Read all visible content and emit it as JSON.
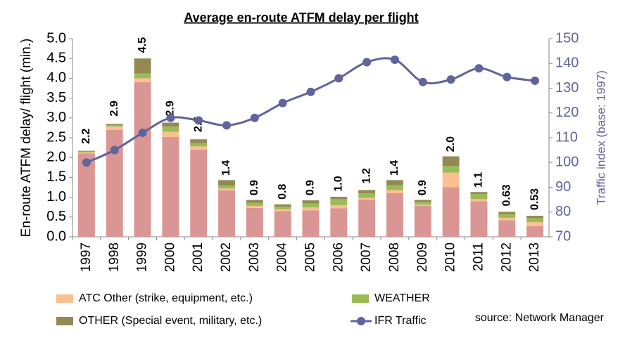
{
  "chart_data": {
    "type": "bar",
    "stacked": true,
    "title": "Average en-route ATFM delay per flight",
    "y_label": "En-route ATFM delay/ flight (min.)",
    "y2_label": "Traffic index (base: 1997)",
    "source": "source: Network Manager",
    "categories": [
      "1997",
      "1998",
      "1999",
      "2000",
      "2001",
      "2002",
      "2003",
      "2004",
      "2005",
      "2006",
      "2007",
      "2008",
      "2009",
      "2010",
      "2011",
      "2012",
      "2013"
    ],
    "series": [
      {
        "color": "#d99694",
        "values": [
          2.1,
          2.7,
          3.9,
          2.52,
          2.2,
          1.17,
          0.73,
          0.65,
          0.67,
          0.72,
          0.93,
          1.1,
          0.78,
          1.25,
          0.9,
          0.42,
          0.27
        ]
      },
      {
        "name": "ATC Other (strike, equipment, etc.)",
        "color": "#fac090",
        "values": [
          0.03,
          0.08,
          0.1,
          0.13,
          0.08,
          0.05,
          0.05,
          0.05,
          0.07,
          0.08,
          0.05,
          0.08,
          0.03,
          0.37,
          0.05,
          0.06,
          0.1
        ]
      },
      {
        "name": "WEATHER",
        "color": "#9bbb59",
        "values": [
          0.02,
          0.04,
          0.12,
          0.13,
          0.08,
          0.07,
          0.08,
          0.06,
          0.1,
          0.15,
          0.12,
          0.12,
          0.07,
          0.17,
          0.13,
          0.09,
          0.1
        ]
      },
      {
        "name": "OTHER (Special event, military, etc.)",
        "color": "#938953",
        "values": [
          0.02,
          0.03,
          0.38,
          0.1,
          0.1,
          0.14,
          0.07,
          0.06,
          0.08,
          0.06,
          0.08,
          0.13,
          0.05,
          0.24,
          0.05,
          0.06,
          0.06
        ]
      },
      {
        "name": "IFR Traffic",
        "type": "line",
        "axis": "y2",
        "color": "#61639b",
        "values": [
          100,
          105,
          112,
          118,
          117,
          115,
          118,
          124,
          128.5,
          134,
          140.5,
          141.5,
          132.5,
          133.5,
          138,
          134.5,
          133
        ]
      }
    ],
    "totals": {
      "values": [
        2.2,
        2.9,
        4.5,
        2.9,
        2.5,
        1.4,
        0.9,
        0.8,
        0.9,
        1.0,
        1.2,
        1.4,
        0.9,
        2.0,
        1.1,
        0.63,
        0.53
      ],
      "value_labels": [
        "2.2",
        "2.9",
        "4.5",
        "2.9",
        "2.5",
        "1.4",
        "0.9",
        "0.8",
        "0.9",
        "1.0",
        "1.2",
        "1.4",
        "0.9",
        "2.0",
        "1.1",
        "0.63",
        "0.53"
      ]
    },
    "ylim": [
      0,
      5
    ],
    "yticks": [
      {
        "value": 0,
        "label": "0.0"
      },
      0.5,
      {
        "value": 1,
        "label": "1.0"
      },
      1.5,
      {
        "value": 2,
        "label": "2.0"
      },
      2.5,
      {
        "value": 3,
        "label": "3.0"
      },
      3.5,
      {
        "value": 4,
        "label": "4.0"
      },
      4.5,
      {
        "value": 5,
        "label": "5.0"
      }
    ],
    "y2lim": [
      70,
      150
    ],
    "y2ticks": [
      70,
      80,
      90,
      100,
      110,
      120,
      130,
      140,
      150
    ],
    "grid": false
  }
}
